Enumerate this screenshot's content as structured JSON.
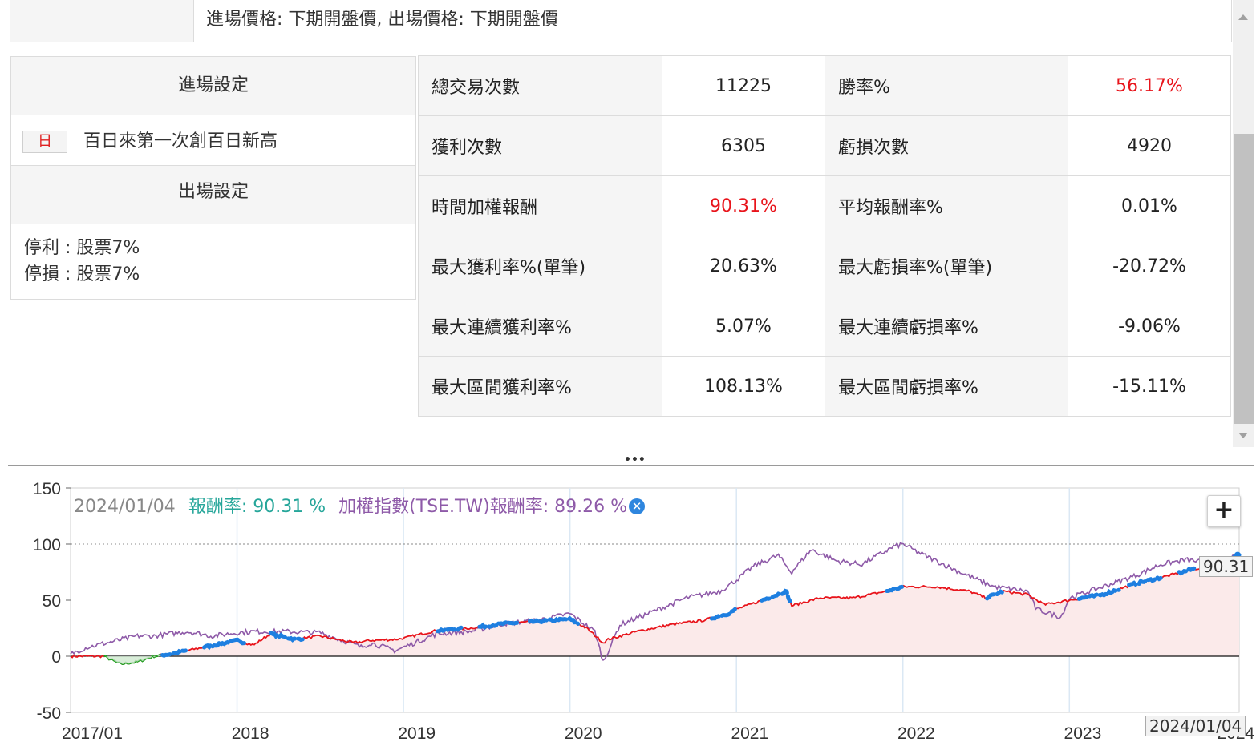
{
  "price_setting": "進場價格: 下期開盤價, 出場價格: 下期開盤價",
  "entry": {
    "header": "進場設定",
    "badge": "日",
    "condition": "百日來第一次創百日新高"
  },
  "exit": {
    "header": "出場設定",
    "lines": [
      "停利 : 股票7%",
      "停損 : 股票7%"
    ]
  },
  "stats": [
    {
      "l1": "總交易次數",
      "v1": "11225",
      "l2": "勝率%",
      "v2": "56.17%",
      "v2_red": true
    },
    {
      "l1": "獲利次數",
      "v1": "6305",
      "l2": "虧損次數",
      "v2": "4920"
    },
    {
      "l1": "時間加權報酬",
      "v1": "90.31%",
      "v1_red": true,
      "l2": "平均報酬率%",
      "v2": "0.01%"
    },
    {
      "l1": "最大獲利率%(單筆)",
      "v1": "20.63%",
      "l2": "最大虧損率%(單筆)",
      "v2": "-20.72%"
    },
    {
      "l1": "最大連續獲利率%",
      "v1": "5.07%",
      "l2": "最大連續虧損率%",
      "v2": "-9.06%"
    },
    {
      "l1": "最大區間獲利率%",
      "v1": "108.13%",
      "l2": "最大區間虧損率%",
      "v2": "-15.11%"
    }
  ],
  "legend": {
    "date": "2024/01/04",
    "strategy": "報酬率: 90.31 %",
    "index": "加權指數(TSE.TW)報酬率: 89.26 %"
  },
  "zoom_label": "+",
  "end_value_label": "90.31",
  "crosshair_date": "2024/01/04",
  "colors": {
    "strategy": "#e8141b",
    "index": "#8e5aa8",
    "drawdown": "#1f9d1f",
    "holding": "#1e7fe0",
    "fill": "#fbeaea"
  },
  "chart_data": {
    "type": "line",
    "ylim": [
      -50,
      150
    ],
    "yticks": [
      150,
      100,
      50,
      0,
      -50
    ],
    "xlabels": [
      "2017/01",
      "2018",
      "2019",
      "2020",
      "2021",
      "2022",
      "2023",
      "2024"
    ],
    "xlim": [
      2017.0,
      2024.02
    ],
    "series": [
      {
        "name": "報酬率",
        "x": [
          2017.0,
          2017.2,
          2017.3,
          2017.4,
          2017.5,
          2017.6,
          2017.8,
          2018.0,
          2018.1,
          2018.2,
          2018.35,
          2018.5,
          2018.7,
          2018.8,
          2018.95,
          2019.0,
          2019.2,
          2019.4,
          2019.6,
          2019.8,
          2020.0,
          2020.1,
          2020.2,
          2020.23,
          2020.4,
          2020.6,
          2020.8,
          2020.95,
          2021.0,
          2021.1,
          2021.3,
          2021.33,
          2021.5,
          2021.7,
          2021.9,
          2022.0,
          2022.2,
          2022.4,
          2022.5,
          2022.6,
          2022.75,
          2022.85,
          2023.0,
          2023.2,
          2023.4,
          2023.6,
          2023.75,
          2023.9,
          2024.02
        ],
        "y": [
          0,
          0,
          -7,
          -5,
          0,
          2,
          8,
          14,
          10,
          20,
          15,
          18,
          12,
          14,
          15,
          16,
          23,
          25,
          29,
          31,
          33,
          25,
          12,
          15,
          22,
          28,
          32,
          38,
          42,
          47,
          58,
          45,
          52,
          52,
          58,
          62,
          62,
          58,
          52,
          58,
          55,
          46,
          50,
          55,
          65,
          72,
          78,
          80,
          90.31
        ]
      },
      {
        "name": "加權指數(TSE.TW)報酬率",
        "x": [
          2017.0,
          2017.1,
          2017.25,
          2017.4,
          2017.5,
          2017.7,
          2017.85,
          2018.0,
          2018.1,
          2018.3,
          2018.5,
          2018.75,
          2018.8,
          2018.95,
          2019.0,
          2019.2,
          2019.4,
          2019.6,
          2019.8,
          2020.0,
          2020.15,
          2020.2,
          2020.3,
          2020.5,
          2020.7,
          2020.9,
          2021.0,
          2021.1,
          2021.25,
          2021.33,
          2021.45,
          2021.6,
          2021.75,
          2021.95,
          2022.0,
          2022.1,
          2022.3,
          2022.45,
          2022.55,
          2022.75,
          2022.8,
          2022.95,
          2023.0,
          2023.2,
          2023.4,
          2023.55,
          2023.7,
          2023.85,
          2024.02
        ],
        "y": [
          2,
          8,
          13,
          18,
          18,
          22,
          18,
          21,
          22,
          22,
          21,
          8,
          12,
          5,
          8,
          20,
          22,
          29,
          32,
          38,
          22,
          -5,
          28,
          40,
          52,
          58,
          68,
          80,
          90,
          75,
          95,
          85,
          82,
          98,
          100,
          92,
          78,
          68,
          62,
          58,
          42,
          35,
          52,
          62,
          72,
          82,
          86,
          83,
          89.26
        ]
      }
    ],
    "drawdown_segment": {
      "x_from": 2017.2,
      "x_to": 2017.55
    },
    "holding_segments": [
      [
        2017.55,
        2017.7
      ],
      [
        2017.8,
        2018.05
      ],
      [
        2018.2,
        2018.4
      ],
      [
        2019.2,
        2019.35
      ],
      [
        2019.45,
        2019.7
      ],
      [
        2019.75,
        2020.05
      ],
      [
        2020.85,
        2021.0
      ],
      [
        2021.15,
        2021.33
      ],
      [
        2021.9,
        2022.0
      ],
      [
        2022.5,
        2022.6
      ],
      [
        2023.05,
        2023.3
      ],
      [
        2023.35,
        2023.55
      ],
      [
        2023.65,
        2023.75
      ],
      [
        2023.95,
        2024.02
      ]
    ]
  }
}
